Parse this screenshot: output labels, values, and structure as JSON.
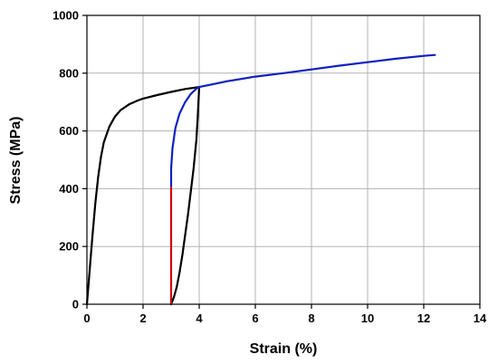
{
  "chart_data": {
    "type": "line",
    "title": "",
    "xlabel": "Strain (%)",
    "ylabel": "Stress (MPa)",
    "xlim": [
      0,
      14
    ],
    "ylim": [
      0,
      1000
    ],
    "xticks": [
      0,
      2,
      4,
      6,
      8,
      10,
      12,
      14
    ],
    "yticks": [
      0,
      200,
      400,
      600,
      800,
      1000
    ],
    "grid": true,
    "series": [
      {
        "color": "#000000",
        "x": [
          0,
          0.1,
          0.2,
          0.3,
          0.4,
          0.5,
          0.6,
          0.8,
          1.0,
          1.2,
          1.5,
          1.8,
          2.0,
          2.5,
          3.0,
          3.5,
          4.0
        ],
        "y": [
          0,
          120,
          240,
          350,
          440,
          510,
          560,
          615,
          650,
          672,
          692,
          705,
          712,
          724,
          735,
          745,
          752
        ]
      },
      {
        "color": "#000000",
        "x": [
          4.0,
          3.95,
          3.9,
          3.8,
          3.7,
          3.6,
          3.5,
          3.4,
          3.3,
          3.2,
          3.1,
          3.0
        ],
        "y": [
          752,
          650,
          570,
          470,
          390,
          310,
          240,
          170,
          110,
          60,
          25,
          0
        ]
      },
      {
        "color": "#cc0000",
        "x": [
          3.0,
          3.0
        ],
        "y": [
          0,
          410
        ]
      },
      {
        "color": "#1020c0",
        "x": [
          3.0,
          3.0,
          3.05,
          3.15,
          3.3,
          3.5,
          3.7,
          3.85,
          3.95,
          4.0,
          4.5,
          5.0,
          6.0,
          7.0,
          8.0,
          9.0,
          10.0,
          11.0,
          12.0,
          12.4
        ],
        "y": [
          410,
          470,
          540,
          610,
          660,
          700,
          728,
          742,
          750,
          752,
          762,
          772,
          788,
          800,
          813,
          826,
          838,
          850,
          860,
          863
        ]
      }
    ]
  }
}
